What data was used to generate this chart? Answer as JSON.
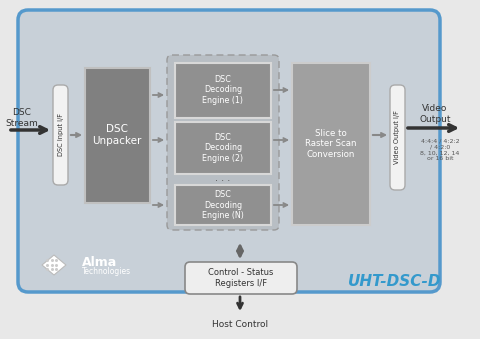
{
  "bg_outer": "#e8e8e8",
  "bg_main": "#c8d0d8",
  "bg_blue_border": "#5599cc",
  "text_dark": "#333333",
  "text_white": "#ffffff",
  "text_blue": "#3399cc",
  "text_gray": "#555555",
  "title_text": "UHT-DSC-D",
  "dsc_stream_label": "DSC\nStream",
  "dsc_input_label": "DSC Input I/F",
  "dsc_unpacker_label": "DSC\nUnpacker",
  "engine1_label": "DSC\nDecoding\nEngine (1)",
  "engine2_label": "DSC\nDecoding\nEngine (2)",
  "engineN_label": "DSC\nDecoding\nEngine (N)",
  "dots_label": ". . .",
  "raster_label": "Slice to\nRaster Scan\nConversion",
  "output_if_label": "Video Output I/F",
  "video_output_label": "Video\nOutput",
  "video_format_label": "4:4:4 / 4:2:2\n/ 4:2:0\n8, 10, 12, 14\nor 16 bit",
  "control_label": "Control - Status\nRegisters I/F",
  "host_control_label": "Host Control",
  "alma_name": "Alma",
  "alma_sub": "Technologies",
  "unpacker_fc": "#808080",
  "engine_fc": "#909090",
  "raster_fc": "#a0a0a0",
  "dashed_fc": "#b8bec4",
  "if_fc": "#f2f2f2",
  "if_ec": "#aaaaaa",
  "control_fc": "#eeeeee",
  "control_ec": "#888888",
  "arrow_dark": "#333333",
  "arrow_gray": "#888888"
}
